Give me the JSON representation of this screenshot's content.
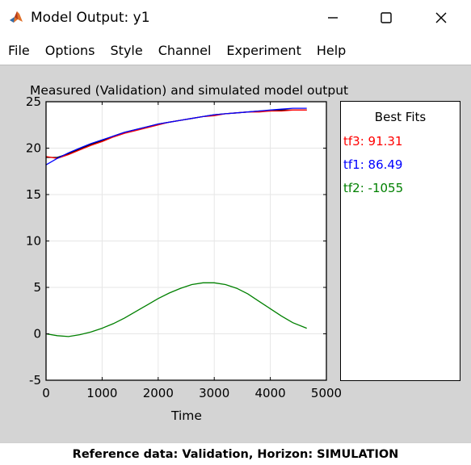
{
  "window": {
    "title": "Model Output: y1"
  },
  "menu": {
    "items": [
      "File",
      "Options",
      "Style",
      "Channel",
      "Experiment",
      "Help"
    ]
  },
  "icons": {
    "app": "matlab-icon",
    "minimize": "minimize-icon",
    "maximize": "maximize-icon",
    "close": "close-icon"
  },
  "legend": {
    "title": "Best Fits",
    "entries": [
      {
        "label": "tf3: 91.31",
        "color": "#ff0000"
      },
      {
        "label": "tf1: 86.49",
        "color": "#0000ff"
      },
      {
        "label": "tf2: -1055",
        "color": "#008000"
      }
    ]
  },
  "status": {
    "text": "Reference data:  Validation, Horizon: SIMULATION"
  },
  "chart_data": {
    "type": "line",
    "title": "Measured (Validation) and simulated model output",
    "xlabel": "Time",
    "ylabel": "",
    "xlim": [
      0,
      5000
    ],
    "ylim": [
      -5,
      25
    ],
    "xticks": [
      0,
      1000,
      2000,
      3000,
      4000,
      5000
    ],
    "yticks": [
      -5,
      0,
      5,
      10,
      15,
      20,
      25
    ],
    "grid": true,
    "legend_position": "right, outside axes",
    "x": [
      0,
      200,
      400,
      600,
      800,
      1000,
      1200,
      1400,
      1600,
      1800,
      2000,
      2200,
      2400,
      2600,
      2800,
      3000,
      3200,
      3400,
      3600,
      3800,
      4000,
      4200,
      4400,
      4650
    ],
    "series": [
      {
        "name": "",
        "color": "#000000",
        "values": [
          19.0,
          19.0,
          19.4,
          19.9,
          20.4,
          20.8,
          21.3,
          21.7,
          22.0,
          22.3,
          22.6,
          22.8,
          23.0,
          23.2,
          23.4,
          23.6,
          23.7,
          23.8,
          23.9,
          24.0,
          24.0,
          24.1,
          24.1,
          24.1
        ]
      },
      {
        "name": "tf3: 91.31",
        "color": "#ff0000",
        "values": [
          19.1,
          18.9,
          19.3,
          19.8,
          20.3,
          20.7,
          21.2,
          21.6,
          21.9,
          22.2,
          22.5,
          22.8,
          23.0,
          23.2,
          23.4,
          23.5,
          23.7,
          23.8,
          23.9,
          23.9,
          24.0,
          24.0,
          24.1,
          24.1
        ]
      },
      {
        "name": "tf1: 86.49",
        "color": "#0000ff",
        "values": [
          18.2,
          18.9,
          19.5,
          20.0,
          20.5,
          20.9,
          21.3,
          21.7,
          22.0,
          22.3,
          22.6,
          22.8,
          23.0,
          23.2,
          23.4,
          23.6,
          23.7,
          23.8,
          23.9,
          24.0,
          24.1,
          24.2,
          24.3,
          24.3
        ]
      },
      {
        "name": "tf2: -1055",
        "color": "#008000",
        "values": [
          0.0,
          -0.2,
          -0.3,
          -0.1,
          0.2,
          0.6,
          1.1,
          1.7,
          2.4,
          3.1,
          3.8,
          4.4,
          4.9,
          5.3,
          5.5,
          5.5,
          5.3,
          4.9,
          4.3,
          3.5,
          2.7,
          1.9,
          1.2,
          0.6
        ]
      }
    ]
  }
}
